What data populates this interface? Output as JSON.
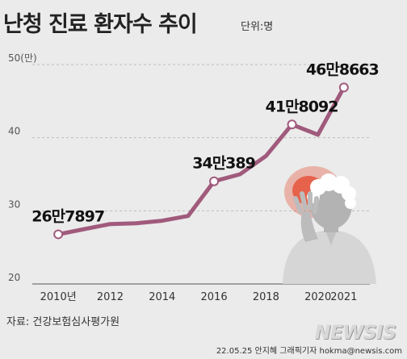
{
  "header": {
    "title": "난청 진료 환자수 추이",
    "unit": "단위:명"
  },
  "chart_data": {
    "type": "line",
    "x": [
      2010,
      2011,
      2012,
      2013,
      2014,
      2015,
      2016,
      2017,
      2018,
      2019,
      2020,
      2021
    ],
    "values": [
      267897,
      275000,
      282000,
      283000,
      286500,
      293000,
      340389,
      350000,
      375000,
      418092,
      404000,
      468663
    ],
    "ylim": [
      20,
      50
    ],
    "yticks": [
      {
        "v": 20,
        "label": "20"
      },
      {
        "v": 30,
        "label": "30"
      },
      {
        "v": 40,
        "label": "40"
      },
      {
        "v": 50,
        "label": "50(만)"
      }
    ],
    "xticks": [
      {
        "x": 2010,
        "label": "2010년"
      },
      {
        "x": 2012,
        "label": "2012"
      },
      {
        "x": 2014,
        "label": "2014"
      },
      {
        "x": 2016,
        "label": "2016"
      },
      {
        "x": 2018,
        "label": "2018"
      },
      {
        "x": 2020,
        "label": "2020"
      },
      {
        "x": 2021,
        "label": "2021"
      }
    ],
    "data_labels": [
      {
        "x": 2010,
        "text": "26만7897"
      },
      {
        "x": 2016,
        "text": "34만389"
      },
      {
        "x": 2019,
        "text": "41만8092"
      },
      {
        "x": 2021,
        "text": "46만8663"
      }
    ],
    "markers": [
      2010,
      2016,
      2019,
      2021
    ],
    "grid": true,
    "line_color": "#a05a7c"
  },
  "footer": {
    "source": "자료: 건강보험심사평가원",
    "credit": "22.05.25 안지혜 그래픽기자 hokma@newsis.com",
    "logo": "NEWSIS"
  }
}
